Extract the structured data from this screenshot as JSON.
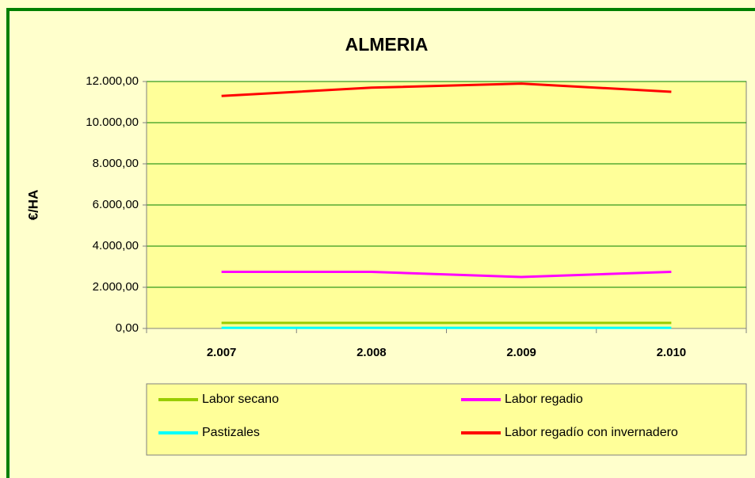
{
  "chart_data": {
    "type": "line",
    "title": "ALMERIA",
    "y_label": "€/HA",
    "categories": [
      "2.007",
      "2.008",
      "2.009",
      "2.010"
    ],
    "series": [
      {
        "name": "Labor secano",
        "color": "#99cc00",
        "values": [
          270,
          270,
          270,
          270
        ]
      },
      {
        "name": "Labor regadio",
        "color": "#ff00ff",
        "values": [
          2750,
          2750,
          2500,
          2750
        ]
      },
      {
        "name": "Pastizales",
        "color": "#00ffff",
        "values": [
          30,
          30,
          30,
          30
        ]
      },
      {
        "name": "Labor regadío con invernadero",
        "color": "#ff0000",
        "values": [
          11300,
          11700,
          11900,
          11500
        ]
      }
    ],
    "ylim": [
      0,
      12000
    ],
    "yticks": [
      {
        "value": 0,
        "label": "0,00"
      },
      {
        "value": 2000,
        "label": "2.000,00"
      },
      {
        "value": 4000,
        "label": "4.000,00"
      },
      {
        "value": 6000,
        "label": "6.000,00"
      },
      {
        "value": 8000,
        "label": "8.000,00"
      },
      {
        "value": 10000,
        "label": "10.000,00"
      },
      {
        "value": 12000,
        "label": "12.000,00"
      }
    ],
    "grid": true,
    "legend": "bottom"
  }
}
